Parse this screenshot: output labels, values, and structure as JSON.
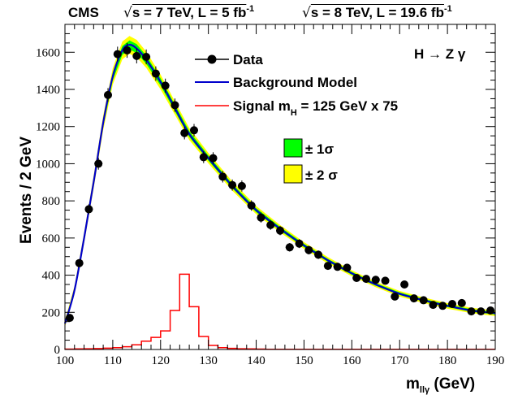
{
  "header": {
    "experiment": "CMS",
    "lumi7_text": "s = 7 TeV, L = 5 fb",
    "lumi7_sup": "-1",
    "lumi8_text": "s = 8 TeV, L = 19.6 fb",
    "lumi8_sup": "-1"
  },
  "channel_label": "H → Z γ",
  "legend": {
    "data": "Data",
    "background": "Background Model",
    "signal_prefix": "Signal m",
    "signal_sub": "H",
    "signal_suffix": " = 125 GeV x 75",
    "band1": "± 1σ",
    "band2": "± 2 σ"
  },
  "colors": {
    "background": "#0000cc",
    "signal": "#ff0000",
    "band1": "#00ff00",
    "band2": "#ffff00",
    "data": "#000000"
  },
  "chart_data": {
    "type": "line",
    "xlabel": "m",
    "xlabel_sub": "llγ",
    "xlabel_unit": " (GeV)",
    "ylabel": "Events / 2 GeV",
    "xlim": [
      100,
      190
    ],
    "ylim": [
      0,
      1750
    ],
    "x_ticks": [
      100,
      110,
      120,
      130,
      140,
      150,
      160,
      170,
      180,
      190
    ],
    "y_ticks": [
      0,
      200,
      400,
      600,
      800,
      1000,
      1200,
      1400,
      1600
    ],
    "data_points": {
      "x": [
        101,
        103,
        105,
        107,
        109,
        111,
        113,
        115,
        117,
        119,
        121,
        123,
        125,
        127,
        129,
        131,
        133,
        135,
        137,
        139,
        141,
        143,
        145,
        147,
        149,
        151,
        153,
        155,
        157,
        159,
        161,
        163,
        165,
        167,
        169,
        171,
        173,
        175,
        177,
        179,
        181,
        183,
        185,
        187,
        189
      ],
      "y": [
        170,
        465,
        755,
        1000,
        1370,
        1590,
        1610,
        1580,
        1575,
        1485,
        1420,
        1315,
        1165,
        1180,
        1035,
        1030,
        930,
        885,
        880,
        775,
        710,
        670,
        640,
        550,
        570,
        535,
        510,
        450,
        445,
        440,
        385,
        380,
        375,
        370,
        285,
        350,
        275,
        265,
        240,
        235,
        245,
        250,
        205,
        205,
        210
      ],
      "yerr": [
        13,
        22,
        27,
        32,
        37,
        40,
        40,
        40,
        40,
        39,
        38,
        36,
        34,
        34,
        32,
        32,
        31,
        30,
        30,
        28,
        27,
        26,
        25,
        23,
        24,
        23,
        23,
        21,
        21,
        21,
        20,
        19,
        19,
        19,
        17,
        19,
        17,
        16,
        15,
        15,
        16,
        16,
        14,
        14,
        14
      ]
    },
    "background_model": {
      "x": [
        100,
        102,
        104,
        106,
        108,
        110,
        112,
        113.5,
        115,
        117,
        120,
        123,
        126,
        130,
        135,
        140,
        145,
        150,
        155,
        160,
        165,
        170,
        175,
        180,
        185,
        190
      ],
      "y": [
        140,
        320,
        600,
        900,
        1220,
        1470,
        1610,
        1640,
        1620,
        1560,
        1440,
        1300,
        1160,
        1030,
        880,
        750,
        650,
        560,
        480,
        410,
        350,
        300,
        265,
        235,
        210,
        195
      ]
    },
    "band_1sigma_halfwidth": [
      8,
      10,
      14,
      17,
      20,
      22,
      24,
      24,
      24,
      22,
      20,
      18,
      16,
      14,
      12,
      11,
      10,
      9,
      8,
      8,
      7,
      7,
      7,
      7,
      7,
      7
    ],
    "band_2sigma_halfwidth": [
      18,
      22,
      28,
      34,
      40,
      44,
      48,
      48,
      47,
      44,
      40,
      36,
      32,
      28,
      25,
      22,
      20,
      18,
      17,
      16,
      15,
      15,
      15,
      15,
      15,
      15
    ],
    "signal_histogram": {
      "bin_edges": [
        100,
        102,
        104,
        106,
        108,
        110,
        112,
        114,
        116,
        118,
        120,
        122,
        124,
        126,
        128,
        130,
        132,
        134,
        136,
        138,
        140,
        142,
        190
      ],
      "values": [
        2,
        3,
        4,
        5,
        7,
        10,
        15,
        25,
        45,
        65,
        100,
        210,
        405,
        230,
        70,
        22,
        10,
        6,
        4,
        3,
        2,
        1
      ]
    }
  }
}
